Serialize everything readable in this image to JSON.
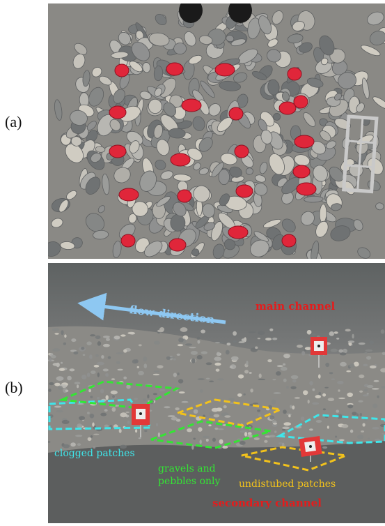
{
  "panels": [
    {
      "label": "(a)"
    },
    {
      "label": "(b)"
    }
  ],
  "annotations": {
    "flow_direction": "flow direction",
    "main_channel": "main channel",
    "clogged_patches": "clogged patches",
    "gravels_line1": "gravels and",
    "gravels_line2": "pebbles only",
    "undisturbed_patches": "undistubed patches",
    "secondary_channel": "secondary channel"
  },
  "colors": {
    "flow_arrow": "#8ec8f2",
    "channel_text": "#e41c1c",
    "clogged": "#3fe6ea",
    "gravels": "#33e633",
    "undisturbed": "#f2c21c",
    "painted_stone": "#e0263a",
    "marker": "#e23838"
  }
}
